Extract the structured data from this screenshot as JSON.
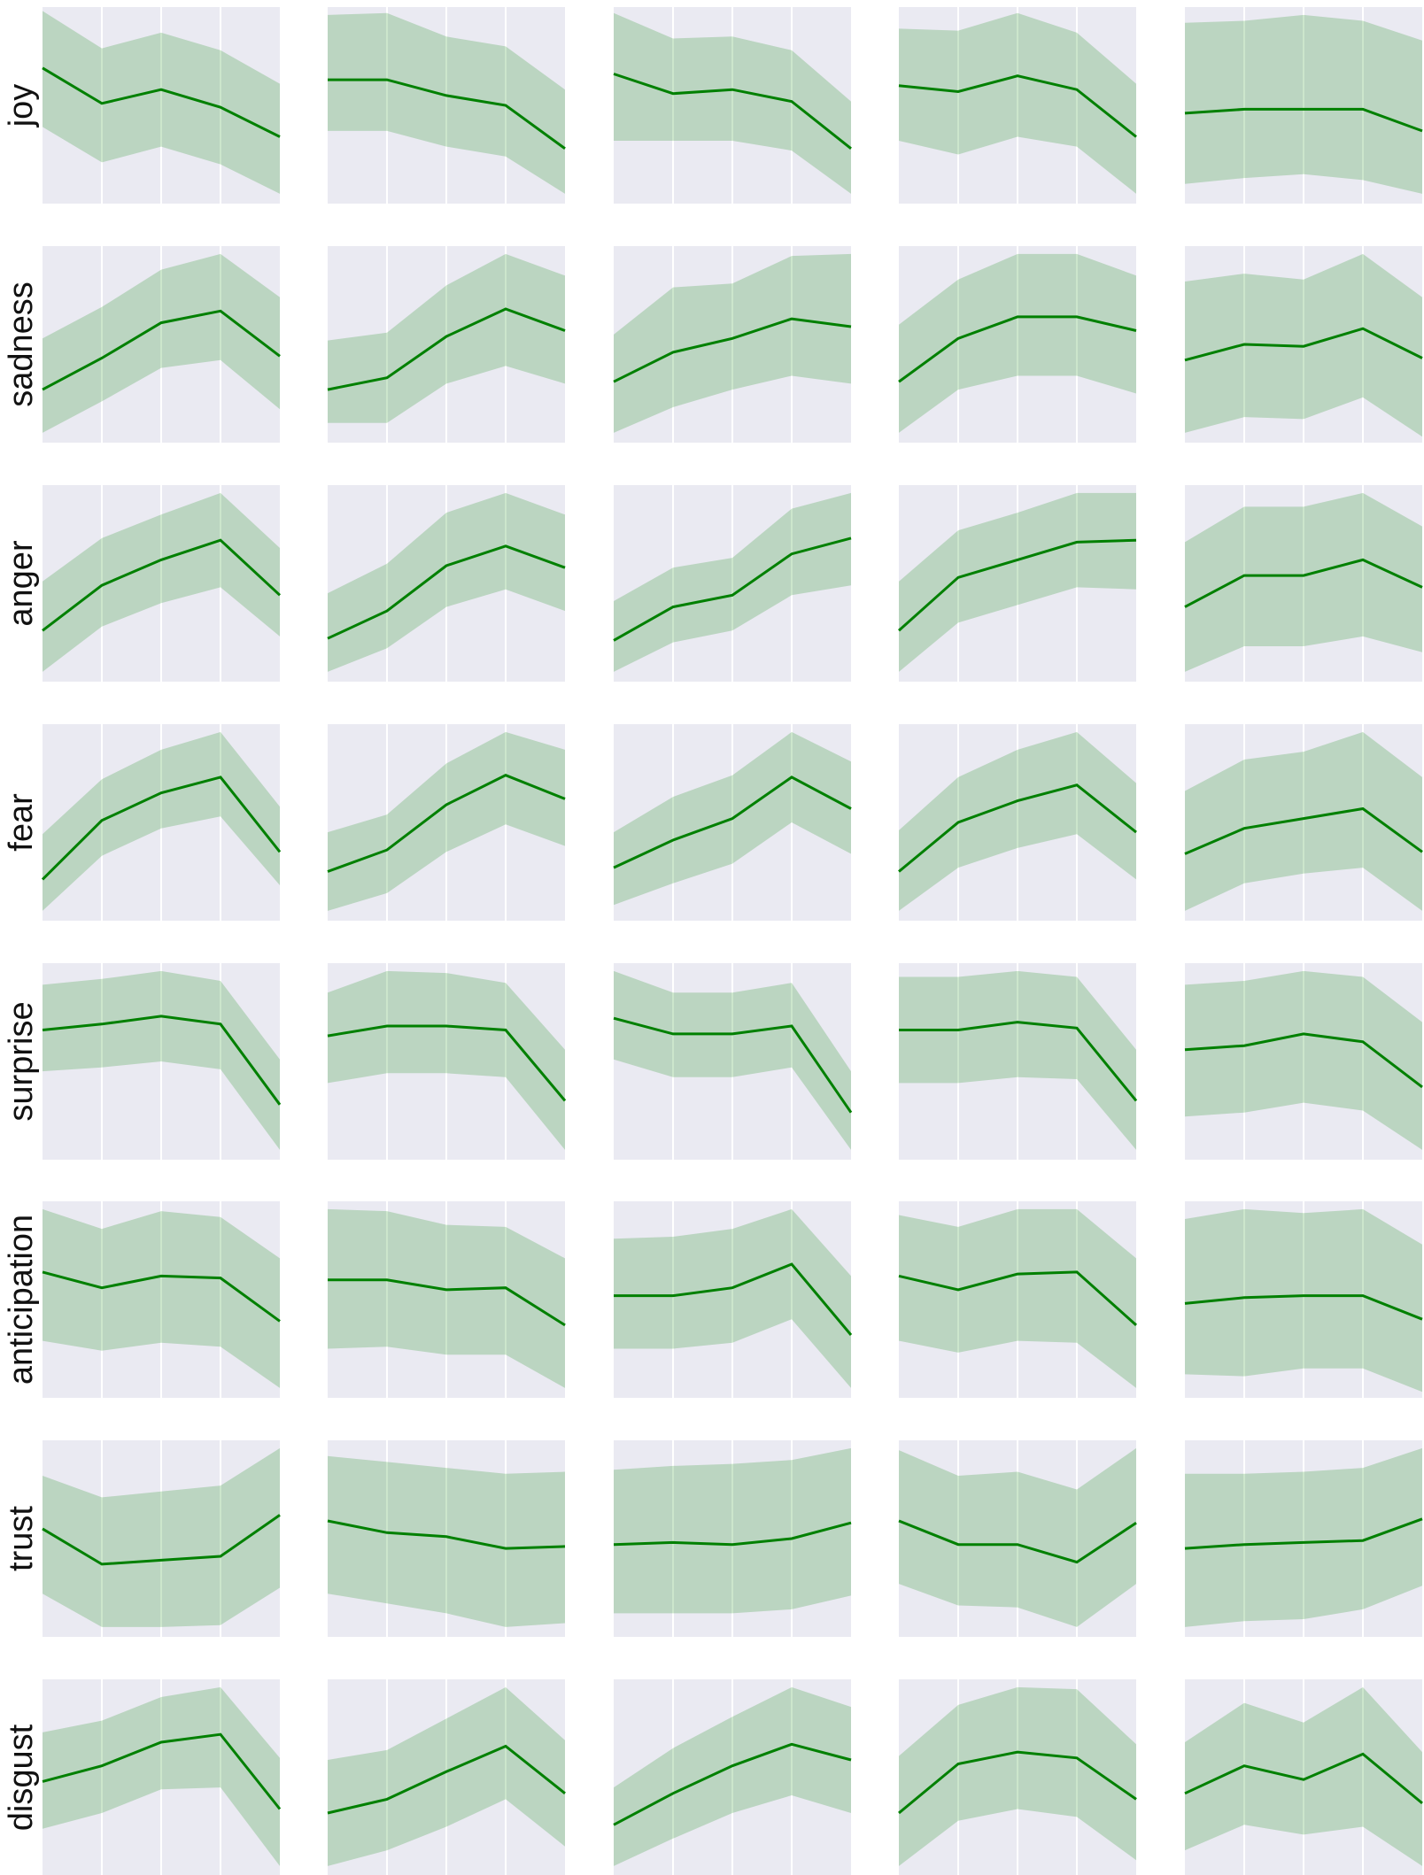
{
  "colors": {
    "panel_background": "#eaeaf2",
    "gridline": "#ffffff",
    "line": "#008000",
    "band": "#008000"
  },
  "chart_data": {
    "type": "line",
    "layout": "small-multiples grid, 8 rows x 5 columns",
    "grid": true,
    "x": [
      0,
      1,
      2,
      3,
      4
    ],
    "ylim": [
      0,
      1
    ],
    "rows": [
      {
        "label": "joy",
        "panels": [
          {
            "mean": [
              0.69,
              0.51,
              0.58,
              0.49,
              0.34
            ],
            "lower": [
              0.39,
              0.21,
              0.29,
              0.2,
              0.05
            ],
            "upper": [
              0.98,
              0.79,
              0.87,
              0.78,
              0.61
            ]
          },
          {
            "mean": [
              0.63,
              0.63,
              0.55,
              0.5,
              0.28
            ],
            "lower": [
              0.37,
              0.37,
              0.29,
              0.24,
              0.05
            ],
            "upper": [
              0.96,
              0.97,
              0.85,
              0.8,
              0.58
            ]
          },
          {
            "mean": [
              0.66,
              0.56,
              0.58,
              0.52,
              0.28
            ],
            "lower": [
              0.32,
              0.32,
              0.32,
              0.27,
              0.05
            ],
            "upper": [
              0.97,
              0.84,
              0.85,
              0.78,
              0.52
            ]
          },
          {
            "mean": [
              0.6,
              0.57,
              0.65,
              0.58,
              0.34
            ],
            "lower": [
              0.32,
              0.25,
              0.34,
              0.29,
              0.05
            ],
            "upper": [
              0.89,
              0.88,
              0.97,
              0.87,
              0.61
            ]
          },
          {
            "mean": [
              0.46,
              0.48,
              0.48,
              0.48,
              0.37
            ],
            "lower": [
              0.1,
              0.13,
              0.15,
              0.12,
              0.05
            ],
            "upper": [
              0.92,
              0.93,
              0.96,
              0.93,
              0.83
            ]
          }
        ]
      },
      {
        "label": "sadness",
        "panels": [
          {
            "mean": [
              0.27,
              0.43,
              0.61,
              0.67,
              0.44
            ],
            "lower": [
              0.05,
              0.21,
              0.38,
              0.42,
              0.17
            ],
            "upper": [
              0.53,
              0.69,
              0.88,
              0.96,
              0.74
            ]
          },
          {
            "mean": [
              0.27,
              0.33,
              0.54,
              0.68,
              0.57
            ],
            "lower": [
              0.1,
              0.1,
              0.3,
              0.39,
              0.3
            ],
            "upper": [
              0.52,
              0.56,
              0.8,
              0.96,
              0.85
            ]
          },
          {
            "mean": [
              0.31,
              0.46,
              0.53,
              0.63,
              0.59
            ],
            "lower": [
              0.05,
              0.18,
              0.27,
              0.34,
              0.3
            ],
            "upper": [
              0.55,
              0.79,
              0.81,
              0.95,
              0.96
            ]
          },
          {
            "mean": [
              0.31,
              0.53,
              0.64,
              0.64,
              0.57
            ],
            "lower": [
              0.05,
              0.27,
              0.34,
              0.34,
              0.25
            ],
            "upper": [
              0.6,
              0.83,
              0.96,
              0.96,
              0.85
            ]
          },
          {
            "mean": [
              0.42,
              0.5,
              0.49,
              0.58,
              0.43
            ],
            "lower": [
              0.05,
              0.13,
              0.12,
              0.23,
              0.03
            ],
            "upper": [
              0.82,
              0.86,
              0.83,
              0.96,
              0.74
            ]
          }
        ]
      },
      {
        "label": "anger",
        "panels": [
          {
            "mean": [
              0.26,
              0.49,
              0.62,
              0.72,
              0.44
            ],
            "lower": [
              0.05,
              0.28,
              0.4,
              0.48,
              0.23
            ],
            "upper": [
              0.51,
              0.73,
              0.85,
              0.96,
              0.68
            ]
          },
          {
            "mean": [
              0.22,
              0.36,
              0.59,
              0.69,
              0.58
            ],
            "lower": [
              0.05,
              0.17,
              0.38,
              0.47,
              0.36
            ],
            "upper": [
              0.45,
              0.6,
              0.86,
              0.96,
              0.85
            ]
          },
          {
            "mean": [
              0.21,
              0.38,
              0.44,
              0.65,
              0.73
            ],
            "lower": [
              0.05,
              0.2,
              0.26,
              0.44,
              0.49
            ],
            "upper": [
              0.41,
              0.58,
              0.63,
              0.88,
              0.96
            ]
          },
          {
            "mean": [
              0.26,
              0.53,
              0.62,
              0.71,
              0.72
            ],
            "lower": [
              0.05,
              0.3,
              0.39,
              0.48,
              0.47
            ],
            "upper": [
              0.51,
              0.77,
              0.86,
              0.96,
              0.96
            ]
          },
          {
            "mean": [
              0.38,
              0.54,
              0.54,
              0.62,
              0.48
            ],
            "lower": [
              0.05,
              0.18,
              0.18,
              0.23,
              0.15
            ],
            "upper": [
              0.71,
              0.89,
              0.89,
              0.96,
              0.79
            ]
          }
        ]
      },
      {
        "label": "fear",
        "panels": [
          {
            "mean": [
              0.21,
              0.51,
              0.65,
              0.73,
              0.35
            ],
            "lower": [
              0.05,
              0.33,
              0.47,
              0.53,
              0.18
            ],
            "upper": [
              0.44,
              0.72,
              0.87,
              0.96,
              0.58
            ]
          },
          {
            "mean": [
              0.25,
              0.36,
              0.59,
              0.74,
              0.62
            ],
            "lower": [
              0.05,
              0.14,
              0.35,
              0.49,
              0.38
            ],
            "upper": [
              0.45,
              0.54,
              0.8,
              0.96,
              0.87
            ]
          },
          {
            "mean": [
              0.27,
              0.41,
              0.52,
              0.73,
              0.57
            ],
            "lower": [
              0.08,
              0.19,
              0.29,
              0.5,
              0.34
            ],
            "upper": [
              0.45,
              0.63,
              0.74,
              0.96,
              0.81
            ]
          },
          {
            "mean": [
              0.25,
              0.5,
              0.61,
              0.69,
              0.45
            ],
            "lower": [
              0.05,
              0.27,
              0.37,
              0.44,
              0.21
            ],
            "upper": [
              0.46,
              0.73,
              0.87,
              0.96,
              0.7
            ]
          },
          {
            "mean": [
              0.34,
              0.47,
              0.52,
              0.57,
              0.35
            ],
            "lower": [
              0.05,
              0.19,
              0.24,
              0.27,
              0.05
            ],
            "upper": [
              0.66,
              0.82,
              0.86,
              0.96,
              0.73
            ]
          }
        ]
      },
      {
        "label": "surprise",
        "panels": [
          {
            "mean": [
              0.66,
              0.69,
              0.73,
              0.69,
              0.28
            ],
            "lower": [
              0.45,
              0.47,
              0.5,
              0.46,
              0.05
            ],
            "upper": [
              0.89,
              0.92,
              0.96,
              0.91,
              0.51
            ]
          },
          {
            "mean": [
              0.63,
              0.68,
              0.68,
              0.66,
              0.3
            ],
            "lower": [
              0.39,
              0.44,
              0.44,
              0.42,
              0.05
            ],
            "upper": [
              0.85,
              0.96,
              0.95,
              0.9,
              0.56
            ]
          },
          {
            "mean": [
              0.72,
              0.64,
              0.64,
              0.68,
              0.24
            ],
            "lower": [
              0.51,
              0.42,
              0.42,
              0.47,
              0.05
            ],
            "upper": [
              0.96,
              0.85,
              0.85,
              0.9,
              0.45
            ]
          },
          {
            "mean": [
              0.66,
              0.66,
              0.7,
              0.67,
              0.3
            ],
            "lower": [
              0.39,
              0.39,
              0.42,
              0.41,
              0.05
            ],
            "upper": [
              0.93,
              0.93,
              0.96,
              0.93,
              0.56
            ]
          },
          {
            "mean": [
              0.56,
              0.58,
              0.64,
              0.6,
              0.37
            ],
            "lower": [
              0.22,
              0.24,
              0.29,
              0.25,
              0.05
            ],
            "upper": [
              0.89,
              0.91,
              0.96,
              0.93,
              0.7
            ]
          }
        ]
      },
      {
        "label": "anticipation",
        "panels": [
          {
            "mean": [
              0.64,
              0.56,
              0.62,
              0.61,
              0.39
            ],
            "lower": [
              0.29,
              0.24,
              0.28,
              0.26,
              0.05
            ],
            "upper": [
              0.96,
              0.86,
              0.95,
              0.92,
              0.71
            ]
          },
          {
            "mean": [
              0.6,
              0.6,
              0.55,
              0.56,
              0.37
            ],
            "lower": [
              0.25,
              0.26,
              0.22,
              0.22,
              0.05
            ],
            "upper": [
              0.96,
              0.95,
              0.88,
              0.87,
              0.71
            ]
          },
          {
            "mean": [
              0.52,
              0.52,
              0.56,
              0.68,
              0.32
            ],
            "lower": [
              0.25,
              0.25,
              0.28,
              0.4,
              0.05
            ],
            "upper": [
              0.81,
              0.82,
              0.86,
              0.96,
              0.62
            ]
          },
          {
            "mean": [
              0.62,
              0.55,
              0.63,
              0.64,
              0.37
            ],
            "lower": [
              0.29,
              0.23,
              0.29,
              0.28,
              0.05
            ],
            "upper": [
              0.93,
              0.87,
              0.96,
              0.96,
              0.71
            ]
          },
          {
            "mean": [
              0.48,
              0.51,
              0.52,
              0.52,
              0.4
            ],
            "lower": [
              0.12,
              0.11,
              0.15,
              0.15,
              0.03
            ],
            "upper": [
              0.91,
              0.96,
              0.94,
              0.96,
              0.78
            ]
          }
        ]
      },
      {
        "label": "trust",
        "panels": [
          {
            "mean": [
              0.55,
              0.37,
              0.39,
              0.41,
              0.62
            ],
            "lower": [
              0.22,
              0.05,
              0.05,
              0.06,
              0.25
            ],
            "upper": [
              0.82,
              0.71,
              0.74,
              0.77,
              0.96
            ]
          },
          {
            "mean": [
              0.59,
              0.53,
              0.51,
              0.45,
              0.46
            ],
            "lower": [
              0.22,
              0.17,
              0.12,
              0.05,
              0.07
            ],
            "upper": [
              0.92,
              0.89,
              0.86,
              0.83,
              0.84
            ]
          },
          {
            "mean": [
              0.47,
              0.48,
              0.47,
              0.5,
              0.58
            ],
            "lower": [
              0.12,
              0.12,
              0.12,
              0.14,
              0.21
            ],
            "upper": [
              0.85,
              0.87,
              0.88,
              0.9,
              0.96
            ]
          },
          {
            "mean": [
              0.59,
              0.47,
              0.47,
              0.38,
              0.58
            ],
            "lower": [
              0.27,
              0.16,
              0.15,
              0.05,
              0.27
            ],
            "upper": [
              0.95,
              0.82,
              0.84,
              0.75,
              0.96
            ]
          },
          {
            "mean": [
              0.45,
              0.47,
              0.48,
              0.49,
              0.6
            ],
            "lower": [
              0.05,
              0.08,
              0.09,
              0.14,
              0.26
            ],
            "upper": [
              0.83,
              0.83,
              0.84,
              0.86,
              0.96
            ]
          }
        ]
      },
      {
        "label": "disgust",
        "panels": [
          {
            "mean": [
              0.48,
              0.56,
              0.68,
              0.72,
              0.34
            ],
            "lower": [
              0.24,
              0.32,
              0.44,
              0.45,
              0.05
            ],
            "upper": [
              0.73,
              0.79,
              0.91,
              0.96,
              0.6
            ]
          },
          {
            "mean": [
              0.32,
              0.39,
              0.53,
              0.66,
              0.42
            ],
            "lower": [
              0.05,
              0.13,
              0.25,
              0.39,
              0.15
            ],
            "upper": [
              0.59,
              0.64,
              0.8,
              0.96,
              0.69
            ]
          },
          {
            "mean": [
              0.26,
              0.42,
              0.56,
              0.67,
              0.59
            ],
            "lower": [
              0.05,
              0.19,
              0.32,
              0.41,
              0.32
            ],
            "upper": [
              0.45,
              0.65,
              0.81,
              0.96,
              0.86
            ]
          },
          {
            "mean": [
              0.32,
              0.57,
              0.63,
              0.6,
              0.39
            ],
            "lower": [
              0.05,
              0.28,
              0.34,
              0.3,
              0.08
            ],
            "upper": [
              0.61,
              0.87,
              0.96,
              0.95,
              0.67
            ]
          },
          {
            "mean": [
              0.42,
              0.56,
              0.49,
              0.62,
              0.37
            ],
            "lower": [
              0.13,
              0.26,
              0.21,
              0.25,
              0.05
            ],
            "upper": [
              0.68,
              0.88,
              0.78,
              0.96,
              0.63
            ]
          }
        ]
      }
    ]
  }
}
